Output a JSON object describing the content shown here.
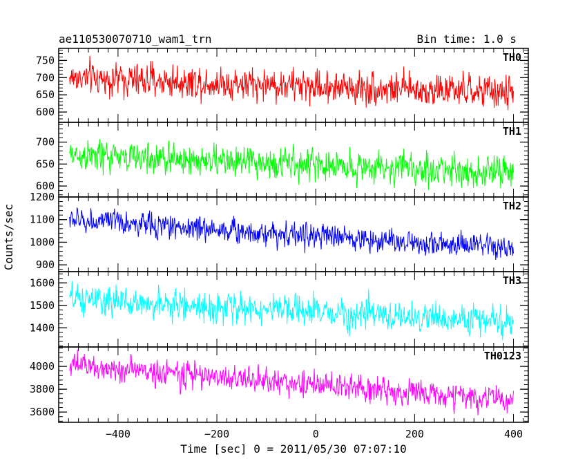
{
  "chart_data": {
    "type": "line",
    "title": "ae110530070710_wam1_trn",
    "subtitle": "Bin time: 1.0 s",
    "xlabel": "Time [sec] 0 = 2011/05/30 07:07:10",
    "ylabel": "Counts/sec",
    "xlim": [
      -520,
      430
    ],
    "x_ticks": [
      -400,
      -200,
      0,
      200,
      400
    ],
    "x_range": [
      -498,
      400
    ],
    "panels": [
      {
        "name": "TH0",
        "color": "#ff0000",
        "ylim": [
          570,
          785
        ],
        "y_ticks": [
          600,
          650,
          700,
          750
        ],
        "start_mean": 700,
        "end_mean": 655,
        "amplitude": 40,
        "points": [
          [
            -498,
            705
          ],
          [
            -300,
            700
          ],
          [
            -100,
            698
          ],
          [
            0,
            695
          ],
          [
            200,
            680
          ],
          [
            400,
            655
          ]
        ]
      },
      {
        "name": "TH1",
        "color": "#00ff00",
        "ylim": [
          575,
          745
        ],
        "y_ticks": [
          600,
          650,
          700
        ],
        "start_mean": 670,
        "end_mean": 630,
        "amplitude": 30,
        "points": [
          [
            -498,
            672
          ],
          [
            -300,
            662
          ],
          [
            -100,
            655
          ],
          [
            0,
            650
          ],
          [
            200,
            640
          ],
          [
            400,
            628
          ]
        ]
      },
      {
        "name": "TH2",
        "color": "#0000ff",
        "ylim": [
          870,
          1200
        ],
        "y_ticks": [
          900,
          1000,
          1100,
          1200
        ],
        "start_mean": 1100,
        "end_mean": 970,
        "amplitude": 45,
        "points": [
          [
            -498,
            1105
          ],
          [
            -300,
            1070
          ],
          [
            -100,
            1040
          ],
          [
            0,
            1025
          ],
          [
            200,
            995
          ],
          [
            400,
            965
          ]
        ]
      },
      {
        "name": "TH3",
        "color": "#00ffff",
        "ylim": [
          1315,
          1650
        ],
        "y_ticks": [
          1400,
          1500,
          1600
        ],
        "start_mean": 1525,
        "end_mean": 1425,
        "amplitude": 55,
        "points": [
          [
            -498,
            1530
          ],
          [
            -300,
            1510
          ],
          [
            -100,
            1490
          ],
          [
            0,
            1475
          ],
          [
            200,
            1455
          ],
          [
            400,
            1425
          ]
        ]
      },
      {
        "name": "TH0123",
        "color": "#ff00ff",
        "ylim": [
          3510,
          4170
        ],
        "y_ticks": [
          3600,
          3800,
          4000
        ],
        "start_mean": 4010,
        "end_mean": 3700,
        "amplitude": 95,
        "points": [
          [
            -498,
            4015
          ],
          [
            -300,
            3960
          ],
          [
            -100,
            3910
          ],
          [
            0,
            3870
          ],
          [
            200,
            3790
          ],
          [
            400,
            3700
          ]
        ]
      }
    ]
  }
}
